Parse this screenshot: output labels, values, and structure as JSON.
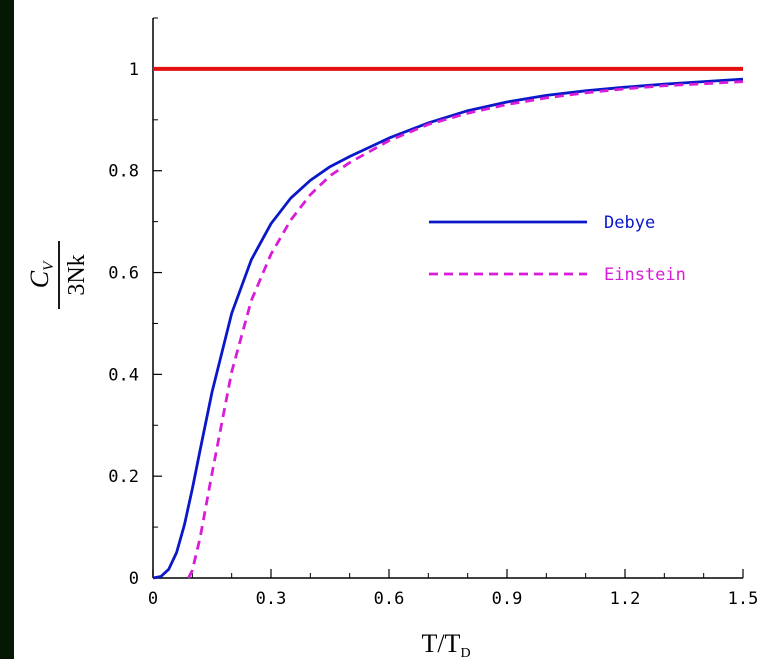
{
  "chart_data": {
    "type": "line",
    "xlabel": {
      "main": "T/T",
      "sub": "D"
    },
    "ylabel": {
      "numerator": {
        "main": "C",
        "sub": "V"
      },
      "denominator": "3Nk"
    },
    "xlim": [
      0,
      1.5
    ],
    "ylim": [
      0,
      1.1
    ],
    "x_ticks": [
      "0",
      "0.3",
      "0.6",
      "0.9",
      "1.2",
      "1.5"
    ],
    "x_tick_values": [
      0,
      0.3,
      0.6,
      0.9,
      1.2,
      1.5
    ],
    "y_ticks": [
      "0",
      "0.2",
      "0.4",
      "0.6",
      "0.8",
      "1"
    ],
    "y_tick_values": [
      0,
      0.2,
      0.4,
      0.6,
      0.8,
      1.0
    ],
    "grid": false,
    "legend_position": "right-middle",
    "series": [
      {
        "name": "Debye",
        "style": "solid",
        "color": "#0a18c8",
        "x": [
          0,
          0.02,
          0.04,
          0.06,
          0.08,
          0.1,
          0.12,
          0.15,
          0.2,
          0.25,
          0.3,
          0.35,
          0.4,
          0.45,
          0.5,
          0.6,
          0.7,
          0.8,
          0.9,
          1.0,
          1.1,
          1.2,
          1.3,
          1.4,
          1.5
        ],
        "y": [
          0,
          0.003,
          0.017,
          0.05,
          0.105,
          0.175,
          0.252,
          0.365,
          0.52,
          0.625,
          0.696,
          0.746,
          0.781,
          0.808,
          0.828,
          0.864,
          0.894,
          0.918,
          0.935,
          0.948,
          0.957,
          0.964,
          0.97,
          0.975,
          0.98
        ]
      },
      {
        "name": "Einstein",
        "style": "dashed",
        "color": "#d81cd8",
        "x": [
          0.09,
          0.1,
          0.12,
          0.15,
          0.2,
          0.25,
          0.3,
          0.35,
          0.4,
          0.45,
          0.5,
          0.6,
          0.7,
          0.8,
          0.9,
          1.0,
          1.1,
          1.2,
          1.3,
          1.4,
          1.5
        ],
        "y": [
          0,
          0.015,
          0.08,
          0.205,
          0.405,
          0.545,
          0.636,
          0.703,
          0.753,
          0.79,
          0.816,
          0.859,
          0.891,
          0.913,
          0.93,
          0.943,
          0.953,
          0.961,
          0.967,
          0.971,
          0.975
        ]
      },
      {
        "name": "",
        "style": "solid",
        "color": "#e41010",
        "x": [
          0,
          1.5
        ],
        "y": [
          1,
          1
        ]
      }
    ]
  }
}
